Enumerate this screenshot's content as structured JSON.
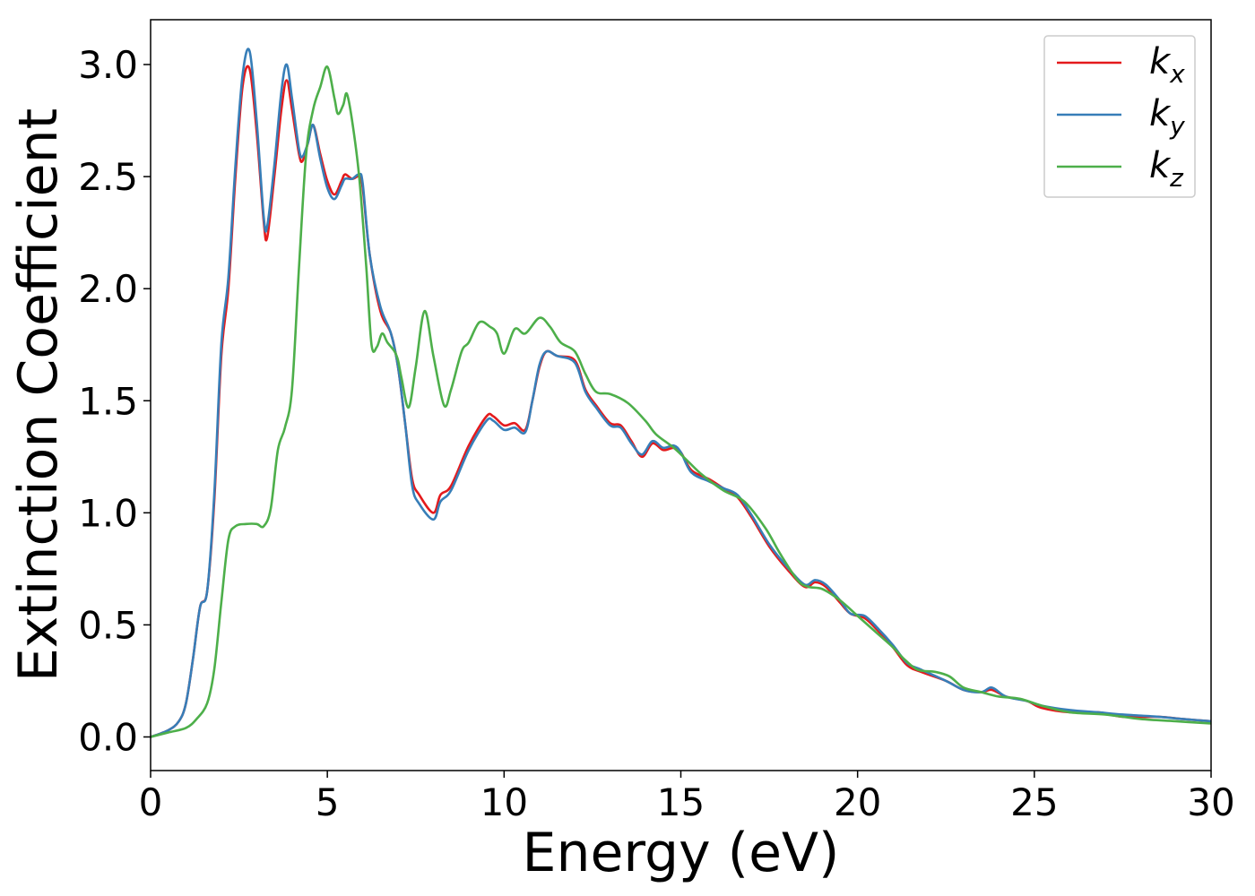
{
  "chart_data": {
    "type": "line",
    "title": "",
    "xlabel": "Energy (eV)",
    "ylabel": "Extinction Coefficient",
    "xlim": [
      0,
      30
    ],
    "ylim": [
      -0.15,
      3.2
    ],
    "xticks": [
      0,
      5,
      10,
      15,
      20,
      25,
      30
    ],
    "xtick_labels": [
      "0",
      "5",
      "10",
      "15",
      "20",
      "25",
      "30"
    ],
    "yticks": [
      0.0,
      0.5,
      1.0,
      1.5,
      2.0,
      2.5,
      3.0
    ],
    "ytick_labels": [
      "0.0",
      "0.5",
      "1.0",
      "1.5",
      "2.0",
      "2.5",
      "3.0"
    ],
    "grid": false,
    "legend_position": "top-right",
    "series": [
      {
        "name": "k_x",
        "label_base": "k",
        "label_sub": "x",
        "color": "#e41a1c",
        "points": [
          [
            0,
            0.0
          ],
          [
            0.5,
            0.03
          ],
          [
            0.8,
            0.07
          ],
          [
            1.0,
            0.15
          ],
          [
            1.2,
            0.35
          ],
          [
            1.4,
            0.58
          ],
          [
            1.6,
            0.65
          ],
          [
            1.8,
            1.05
          ],
          [
            2.0,
            1.7
          ],
          [
            2.2,
            2.0
          ],
          [
            2.4,
            2.5
          ],
          [
            2.6,
            2.9
          ],
          [
            2.8,
            2.98
          ],
          [
            3.0,
            2.7
          ],
          [
            3.2,
            2.3
          ],
          [
            3.3,
            2.23
          ],
          [
            3.5,
            2.5
          ],
          [
            3.7,
            2.8
          ],
          [
            3.85,
            2.93
          ],
          [
            4.0,
            2.8
          ],
          [
            4.2,
            2.6
          ],
          [
            4.3,
            2.57
          ],
          [
            4.45,
            2.65
          ],
          [
            4.6,
            2.73
          ],
          [
            4.8,
            2.6
          ],
          [
            5.0,
            2.48
          ],
          [
            5.2,
            2.42
          ],
          [
            5.4,
            2.48
          ],
          [
            5.5,
            2.51
          ],
          [
            5.7,
            2.49
          ],
          [
            5.9,
            2.5
          ],
          [
            6.0,
            2.45
          ],
          [
            6.2,
            2.15
          ],
          [
            6.5,
            1.9
          ],
          [
            6.8,
            1.8
          ],
          [
            7.0,
            1.65
          ],
          [
            7.2,
            1.4
          ],
          [
            7.4,
            1.15
          ],
          [
            7.6,
            1.08
          ],
          [
            8.0,
            1.0
          ],
          [
            8.2,
            1.08
          ],
          [
            8.5,
            1.12
          ],
          [
            9.0,
            1.3
          ],
          [
            9.5,
            1.43
          ],
          [
            9.7,
            1.43
          ],
          [
            10.0,
            1.39
          ],
          [
            10.3,
            1.4
          ],
          [
            10.6,
            1.37
          ],
          [
            10.8,
            1.5
          ],
          [
            11.0,
            1.65
          ],
          [
            11.2,
            1.72
          ],
          [
            11.5,
            1.7
          ],
          [
            12.0,
            1.68
          ],
          [
            12.3,
            1.55
          ],
          [
            12.6,
            1.48
          ],
          [
            13.0,
            1.4
          ],
          [
            13.3,
            1.39
          ],
          [
            13.6,
            1.32
          ],
          [
            13.9,
            1.25
          ],
          [
            14.2,
            1.31
          ],
          [
            14.5,
            1.28
          ],
          [
            14.8,
            1.29
          ],
          [
            15.0,
            1.27
          ],
          [
            15.3,
            1.19
          ],
          [
            15.8,
            1.15
          ],
          [
            16.2,
            1.11
          ],
          [
            16.6,
            1.07
          ],
          [
            17.0,
            0.98
          ],
          [
            17.5,
            0.85
          ],
          [
            18.0,
            0.75
          ],
          [
            18.5,
            0.67
          ],
          [
            18.8,
            0.69
          ],
          [
            19.1,
            0.67
          ],
          [
            19.5,
            0.6
          ],
          [
            19.8,
            0.55
          ],
          [
            20.2,
            0.53
          ],
          [
            20.6,
            0.47
          ],
          [
            21.0,
            0.4
          ],
          [
            21.4,
            0.32
          ],
          [
            21.8,
            0.29
          ],
          [
            22.5,
            0.25
          ],
          [
            23.0,
            0.21
          ],
          [
            23.5,
            0.2
          ],
          [
            23.8,
            0.21
          ],
          [
            24.2,
            0.18
          ],
          [
            24.8,
            0.16
          ],
          [
            25.2,
            0.13
          ],
          [
            26.0,
            0.11
          ],
          [
            26.8,
            0.11
          ],
          [
            27.5,
            0.09
          ],
          [
            28.5,
            0.09
          ],
          [
            29.2,
            0.08
          ],
          [
            30,
            0.07
          ]
        ]
      },
      {
        "name": "k_y",
        "label_base": "k",
        "label_sub": "y",
        "color": "#377eb8",
        "points": [
          [
            0,
            0.0
          ],
          [
            0.5,
            0.03
          ],
          [
            0.8,
            0.07
          ],
          [
            1.0,
            0.15
          ],
          [
            1.2,
            0.35
          ],
          [
            1.4,
            0.58
          ],
          [
            1.6,
            0.65
          ],
          [
            1.8,
            1.08
          ],
          [
            2.0,
            1.75
          ],
          [
            2.2,
            2.05
          ],
          [
            2.4,
            2.55
          ],
          [
            2.6,
            2.95
          ],
          [
            2.8,
            3.06
          ],
          [
            3.0,
            2.75
          ],
          [
            3.2,
            2.32
          ],
          [
            3.3,
            2.28
          ],
          [
            3.5,
            2.55
          ],
          [
            3.7,
            2.88
          ],
          [
            3.85,
            3.0
          ],
          [
            4.0,
            2.85
          ],
          [
            4.2,
            2.62
          ],
          [
            4.3,
            2.59
          ],
          [
            4.45,
            2.65
          ],
          [
            4.6,
            2.73
          ],
          [
            4.8,
            2.58
          ],
          [
            5.0,
            2.45
          ],
          [
            5.2,
            2.4
          ],
          [
            5.4,
            2.46
          ],
          [
            5.5,
            2.49
          ],
          [
            5.7,
            2.49
          ],
          [
            5.9,
            2.51
          ],
          [
            6.0,
            2.47
          ],
          [
            6.2,
            2.15
          ],
          [
            6.5,
            1.92
          ],
          [
            6.8,
            1.8
          ],
          [
            7.0,
            1.65
          ],
          [
            7.2,
            1.4
          ],
          [
            7.4,
            1.12
          ],
          [
            7.6,
            1.04
          ],
          [
            8.0,
            0.97
          ],
          [
            8.2,
            1.05
          ],
          [
            8.5,
            1.1
          ],
          [
            9.0,
            1.28
          ],
          [
            9.5,
            1.41
          ],
          [
            9.7,
            1.41
          ],
          [
            10.0,
            1.37
          ],
          [
            10.3,
            1.38
          ],
          [
            10.6,
            1.36
          ],
          [
            10.8,
            1.5
          ],
          [
            11.0,
            1.66
          ],
          [
            11.2,
            1.72
          ],
          [
            11.5,
            1.7
          ],
          [
            12.0,
            1.67
          ],
          [
            12.3,
            1.54
          ],
          [
            12.6,
            1.47
          ],
          [
            13.0,
            1.39
          ],
          [
            13.3,
            1.38
          ],
          [
            13.6,
            1.31
          ],
          [
            13.9,
            1.26
          ],
          [
            14.2,
            1.32
          ],
          [
            14.5,
            1.29
          ],
          [
            14.8,
            1.3
          ],
          [
            15.0,
            1.27
          ],
          [
            15.3,
            1.18
          ],
          [
            15.8,
            1.14
          ],
          [
            16.2,
            1.11
          ],
          [
            16.6,
            1.08
          ],
          [
            17.0,
            0.99
          ],
          [
            17.5,
            0.86
          ],
          [
            18.0,
            0.76
          ],
          [
            18.5,
            0.68
          ],
          [
            18.8,
            0.7
          ],
          [
            19.1,
            0.68
          ],
          [
            19.5,
            0.61
          ],
          [
            19.8,
            0.55
          ],
          [
            20.2,
            0.54
          ],
          [
            20.6,
            0.48
          ],
          [
            21.0,
            0.41
          ],
          [
            21.4,
            0.33
          ],
          [
            21.8,
            0.3
          ],
          [
            22.5,
            0.25
          ],
          [
            23.0,
            0.21
          ],
          [
            23.5,
            0.2
          ],
          [
            23.8,
            0.22
          ],
          [
            24.2,
            0.18
          ],
          [
            24.8,
            0.16
          ],
          [
            25.2,
            0.14
          ],
          [
            26.0,
            0.12
          ],
          [
            26.8,
            0.11
          ],
          [
            27.5,
            0.1
          ],
          [
            28.5,
            0.09
          ],
          [
            29.2,
            0.08
          ],
          [
            30,
            0.07
          ]
        ]
      },
      {
        "name": "k_z",
        "label_base": "k",
        "label_sub": "z",
        "color": "#4daf4a",
        "points": [
          [
            0,
            0.0
          ],
          [
            0.5,
            0.02
          ],
          [
            1.0,
            0.04
          ],
          [
            1.3,
            0.08
          ],
          [
            1.6,
            0.15
          ],
          [
            1.8,
            0.3
          ],
          [
            2.0,
            0.6
          ],
          [
            2.2,
            0.88
          ],
          [
            2.4,
            0.94
          ],
          [
            2.7,
            0.95
          ],
          [
            3.0,
            0.95
          ],
          [
            3.2,
            0.94
          ],
          [
            3.4,
            1.02
          ],
          [
            3.6,
            1.28
          ],
          [
            3.8,
            1.38
          ],
          [
            4.0,
            1.55
          ],
          [
            4.2,
            2.1
          ],
          [
            4.4,
            2.6
          ],
          [
            4.6,
            2.8
          ],
          [
            4.8,
            2.9
          ],
          [
            5.0,
            2.99
          ],
          [
            5.2,
            2.85
          ],
          [
            5.3,
            2.78
          ],
          [
            5.45,
            2.82
          ],
          [
            5.55,
            2.87
          ],
          [
            5.7,
            2.75
          ],
          [
            5.9,
            2.5
          ],
          [
            6.1,
            2.1
          ],
          [
            6.25,
            1.75
          ],
          [
            6.4,
            1.74
          ],
          [
            6.55,
            1.8
          ],
          [
            6.7,
            1.76
          ],
          [
            6.9,
            1.72
          ],
          [
            7.0,
            1.68
          ],
          [
            7.1,
            1.6
          ],
          [
            7.3,
            1.47
          ],
          [
            7.5,
            1.65
          ],
          [
            7.75,
            1.9
          ],
          [
            8.0,
            1.7
          ],
          [
            8.3,
            1.48
          ],
          [
            8.5,
            1.55
          ],
          [
            8.8,
            1.72
          ],
          [
            9.0,
            1.76
          ],
          [
            9.3,
            1.85
          ],
          [
            9.6,
            1.83
          ],
          [
            9.8,
            1.8
          ],
          [
            10.0,
            1.71
          ],
          [
            10.3,
            1.82
          ],
          [
            10.6,
            1.8
          ],
          [
            11.0,
            1.87
          ],
          [
            11.3,
            1.83
          ],
          [
            11.6,
            1.76
          ],
          [
            12.0,
            1.72
          ],
          [
            12.3,
            1.62
          ],
          [
            12.6,
            1.54
          ],
          [
            13.0,
            1.53
          ],
          [
            13.5,
            1.49
          ],
          [
            14.0,
            1.41
          ],
          [
            14.3,
            1.35
          ],
          [
            14.8,
            1.29
          ],
          [
            15.2,
            1.23
          ],
          [
            15.6,
            1.17
          ],
          [
            16.2,
            1.1
          ],
          [
            16.8,
            1.05
          ],
          [
            17.4,
            0.93
          ],
          [
            17.8,
            0.82
          ],
          [
            18.3,
            0.7
          ],
          [
            18.6,
            0.67
          ],
          [
            19.0,
            0.66
          ],
          [
            19.5,
            0.61
          ],
          [
            20.0,
            0.54
          ],
          [
            20.5,
            0.47
          ],
          [
            21.0,
            0.4
          ],
          [
            21.3,
            0.35
          ],
          [
            21.7,
            0.3
          ],
          [
            22.2,
            0.29
          ],
          [
            22.6,
            0.27
          ],
          [
            23.0,
            0.22
          ],
          [
            23.5,
            0.2
          ],
          [
            24.0,
            0.18
          ],
          [
            24.6,
            0.17
          ],
          [
            25.2,
            0.14
          ],
          [
            26.0,
            0.11
          ],
          [
            27.0,
            0.1
          ],
          [
            28.0,
            0.08
          ],
          [
            29.0,
            0.07
          ],
          [
            30,
            0.06
          ]
        ]
      }
    ]
  }
}
